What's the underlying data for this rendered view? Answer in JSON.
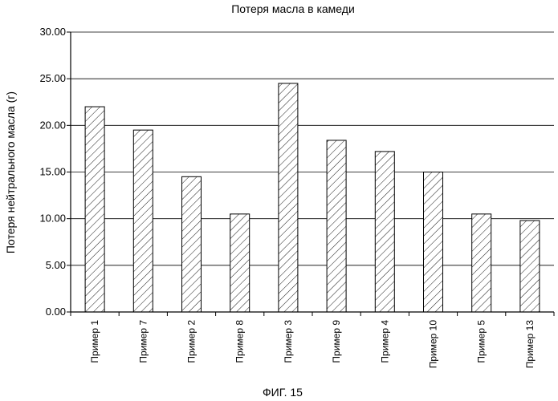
{
  "chart_data": {
    "type": "bar",
    "title": "Потеря масла в камеди",
    "xlabel": "",
    "ylabel": "Потеря нейтрального масла (г)",
    "categories": [
      "Пример 1",
      "Пример 7",
      "Пример 2",
      "Пример 8",
      "Пример 3",
      "Пример 9",
      "Пример 4",
      "Пример 10",
      "Пример 5",
      "Пример 13"
    ],
    "values": [
      22.0,
      19.5,
      14.5,
      10.5,
      24.5,
      18.4,
      17.2,
      15.0,
      10.5,
      9.8
    ],
    "ylim": [
      0,
      30
    ],
    "yticks": [
      "0.00",
      "5.00",
      "10.00",
      "15.00",
      "20.00",
      "25.00",
      "30.00"
    ],
    "grid": true,
    "bar_fill": "diagonal-hatch",
    "bar_color": "#000000"
  },
  "caption": "ФИГ. 15"
}
